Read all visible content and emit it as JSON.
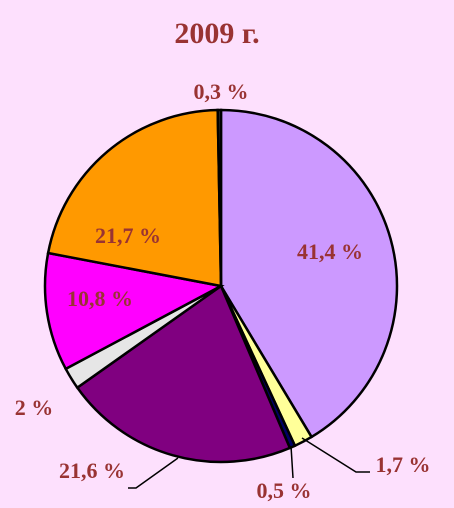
{
  "chart_data": {
    "type": "pie",
    "title": "2009 г.",
    "categories": [
      null,
      null,
      null,
      null,
      null,
      null,
      null,
      null
    ],
    "values": [
      41.4,
      1.7,
      0.5,
      21.6,
      2,
      10.8,
      21.7,
      0.3
    ],
    "value_labels": [
      "41,4 %",
      "1,7 %",
      "0,5 %",
      "21,6 %",
      "2 %",
      "10,8 %",
      "21,7 %",
      "0,3 %"
    ],
    "colors": [
      "#cc99ff",
      "#ffff99",
      "#000066",
      "#800080",
      "#e6e6e6",
      "#ff00ff",
      "#ff9900",
      "#333333"
    ]
  }
}
